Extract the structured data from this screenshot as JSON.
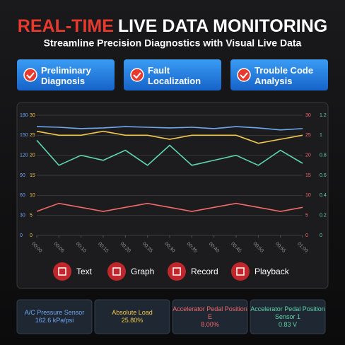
{
  "header": {
    "title_accent": "REAL-TIME",
    "title_rest": "LIVE DATA MONITORING",
    "subtitle": "Streamline Precision Diagnostics with Visual Live Data"
  },
  "features": [
    "Preliminary Diagnosis",
    "Fault Localization",
    "Trouble Code Analysis"
  ],
  "chart_data": {
    "type": "line",
    "categories": [
      "00:00",
      "00:05",
      "00:10",
      "00:15",
      "00:20",
      "00:25",
      "00:30",
      "00:35",
      "00:40",
      "00:45",
      "00:50",
      "00:55",
      "01:00"
    ],
    "ylim": [
      0,
      180
    ],
    "yticks": [
      0,
      30,
      60,
      90,
      120,
      150,
      180
    ],
    "y3lim": [
      0,
      30
    ],
    "y3ticks": [
      0,
      5,
      10,
      15,
      20,
      25,
      30
    ],
    "y2lim": [
      0,
      30
    ],
    "y2ticks": [
      0,
      5,
      10,
      15,
      20,
      25,
      30
    ],
    "y4lim": [
      0,
      1.2
    ],
    "y4ticks": [
      0,
      0.2,
      0.4,
      0.6,
      0.8,
      1,
      1.2
    ],
    "grid": true,
    "series": [
      {
        "color": "#6fa8f0",
        "axis": "y",
        "values": [
          163,
          162,
          160,
          161,
          163,
          162,
          161,
          162,
          160,
          163,
          161,
          158,
          160
        ]
      },
      {
        "color": "#f2c84b",
        "axis": "y3",
        "values": [
          26,
          25,
          25,
          26,
          25,
          25,
          24,
          25,
          25,
          25,
          23,
          24,
          25
        ]
      },
      {
        "color": "#5ed6a8",
        "axis": "y4",
        "values": [
          0.95,
          0.7,
          0.8,
          0.75,
          0.85,
          0.7,
          0.9,
          0.7,
          0.75,
          0.8,
          0.7,
          0.85,
          0.72
        ]
      },
      {
        "color": "#f06a6a",
        "axis": "y2",
        "values": [
          6,
          8,
          7,
          6,
          7,
          8,
          7,
          6,
          7,
          8,
          7,
          6,
          7
        ]
      }
    ]
  },
  "controls": [
    "Text",
    "Graph",
    "Record",
    "Playback"
  ],
  "sensors": [
    {
      "name": "A/C Pressure Sensor",
      "value": "162.6 kPa/psi",
      "color": "#6fa8f0"
    },
    {
      "name": "Absolute Load",
      "value": "25.80%",
      "color": "#f2c84b"
    },
    {
      "name": "Accelerator Pedal Position E",
      "value": "8.00%",
      "color": "#f06a6a"
    },
    {
      "name": "Accelerator Pedal Position Sensor 1",
      "value": "0.83 V",
      "color": "#5ed6a8"
    }
  ]
}
